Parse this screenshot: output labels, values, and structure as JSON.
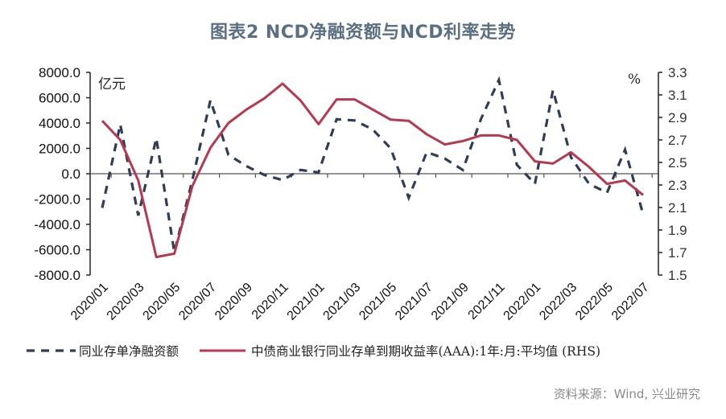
{
  "title": "图表2 NCD净融资额与NCD利率走势",
  "source": "资料来源：Wind, 兴业研究",
  "colors": {
    "dashed_series": "#2f3e56",
    "rate_series": "#b8384f",
    "title": "#5b6f82",
    "axis": "#222222"
  },
  "chart_data": {
    "type": "line",
    "title": "图表2 NCD净融资额与NCD利率走势",
    "xlabel": "",
    "ylabel": "亿元",
    "ylabel_right": "%",
    "ylim": [
      -8000,
      8000
    ],
    "ylim_right": [
      1.5,
      3.3
    ],
    "yticks": [
      "8000.0",
      "6000.0",
      "4000.0",
      "2000.0",
      "0.0",
      "-2000.0",
      "-4000.0",
      "-6000.0",
      "-8000.0"
    ],
    "yticks_right": [
      "3.3",
      "3.1",
      "2.9",
      "2.7",
      "2.5",
      "2.3",
      "2.1",
      "1.9",
      "1.7",
      "1.5"
    ],
    "xtick_labels": [
      "2020/01",
      "2020/03",
      "2020/05",
      "2020/07",
      "2020/09",
      "2020/11",
      "2021/01",
      "2021/03",
      "2021/05",
      "2021/07",
      "2021/09",
      "2021/11",
      "2022/01",
      "2022/03",
      "2022/05",
      "2022/07"
    ],
    "grid": false,
    "legend_position": "bottom",
    "x": [
      "2020/01",
      "2020/02",
      "2020/03",
      "2020/04",
      "2020/05",
      "2020/06",
      "2020/07",
      "2020/08",
      "2020/09",
      "2020/10",
      "2020/11",
      "2020/12",
      "2021/01",
      "2021/02",
      "2021/03",
      "2021/04",
      "2021/05",
      "2021/06",
      "2021/07",
      "2021/08",
      "2021/09",
      "2021/10",
      "2021/11",
      "2021/12",
      "2022/01",
      "2022/02",
      "2022/03",
      "2022/04",
      "2022/05",
      "2022/06",
      "2022/07"
    ],
    "series": [
      {
        "name": "同业存单净融资额",
        "axis": "left",
        "style": "dashed",
        "values": [
          -2700,
          3900,
          -3300,
          2800,
          -6200,
          -500,
          5800,
          1500,
          600,
          -100,
          -500,
          300,
          100,
          4300,
          4200,
          3500,
          2000,
          -1900,
          1700,
          1200,
          300,
          4300,
          7400,
          700,
          -800,
          6600,
          1300,
          -800,
          -1500,
          1900,
          -3200
        ]
      },
      {
        "name": "中债商业银行同业存单到期收益率(AAA):1年:月:平均值 (RHS)",
        "axis": "right",
        "style": "solid",
        "values": [
          2.87,
          2.7,
          2.34,
          1.66,
          1.69,
          2.29,
          2.63,
          2.85,
          2.97,
          3.07,
          3.2,
          3.05,
          2.84,
          3.06,
          3.06,
          2.97,
          2.88,
          2.87,
          2.75,
          2.66,
          2.69,
          2.74,
          2.74,
          2.7,
          2.51,
          2.49,
          2.59,
          2.46,
          2.31,
          2.34,
          2.21
        ]
      }
    ]
  },
  "legend": {
    "items": [
      {
        "label": "同业存单净融资额"
      },
      {
        "label": "中债商业银行同业存单到期收益率(AAA):1年:月:平均值 (RHS)"
      }
    ]
  }
}
